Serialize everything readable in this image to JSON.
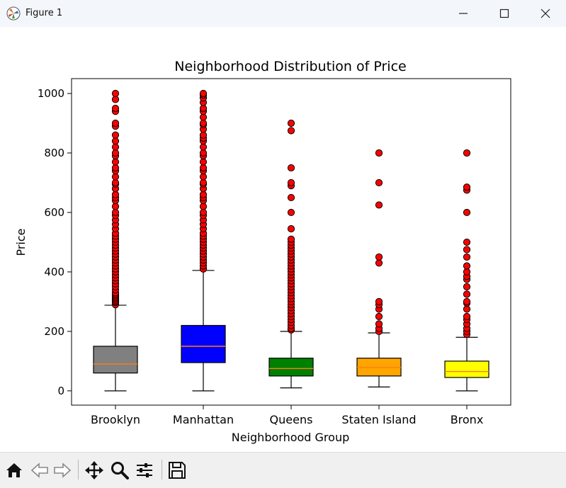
{
  "window": {
    "title": "Figure 1",
    "app_icon": "matplotlib-icon",
    "controls": [
      "minimize-icon",
      "maximize-icon",
      "close-icon"
    ]
  },
  "toolbar": {
    "buttons": [
      "home-icon",
      "back-arrow-icon",
      "forward-arrow-icon",
      "pan-move-icon",
      "zoom-magnifier-icon",
      "configure-subplots-icon",
      "save-floppy-icon"
    ]
  },
  "chart_data": {
    "type": "box",
    "title": "Neighborhood Distribution of Price",
    "xlabel": "Neighborhood Group",
    "ylabel": "Price",
    "ylim": [
      -48,
      1050
    ],
    "yticks": [
      0,
      200,
      400,
      600,
      800,
      1000
    ],
    "ytick_labels": [
      "0",
      "200",
      "400",
      "600",
      "800",
      "1000"
    ],
    "grid": false,
    "categories": [
      "Brooklyn",
      "Manhattan",
      "Queens",
      "Staten Island",
      "Bronx"
    ],
    "median_color": "#ff7f0e",
    "flier_color": "#ff0000",
    "boxes": [
      {
        "label": "Brooklyn",
        "color": "#808080",
        "whisker_low": 0,
        "q1": 60,
        "median": 90,
        "q3": 150,
        "whisker_high": 288,
        "fliers": [
          290,
          298,
          300,
          305,
          310,
          315,
          320,
          325,
          330,
          340,
          350,
          360,
          370,
          380,
          390,
          400,
          410,
          420,
          430,
          440,
          450,
          460,
          470,
          480,
          490,
          500,
          510,
          520,
          530,
          545,
          560,
          575,
          590,
          600,
          620,
          640,
          650,
          660,
          680,
          695,
          700,
          720,
          740,
          750,
          770,
          790,
          800,
          820,
          840,
          860,
          890,
          900,
          940,
          950,
          980,
          1000
        ]
      },
      {
        "label": "Manhattan",
        "color": "#0000ff",
        "whisker_low": 0,
        "q1": 95,
        "median": 150,
        "q3": 220,
        "whisker_high": 405,
        "fliers": [
          410,
          420,
          430,
          440,
          450,
          460,
          470,
          480,
          490,
          500,
          510,
          520,
          530,
          545,
          560,
          575,
          590,
          600,
          620,
          640,
          650,
          660,
          680,
          695,
          700,
          720,
          740,
          750,
          770,
          790,
          800,
          820,
          840,
          850,
          860,
          880,
          895,
          900,
          920,
          940,
          950,
          970,
          985,
          995,
          1000
        ]
      },
      {
        "label": "Queens",
        "color": "#008000",
        "whisker_low": 10,
        "q1": 50,
        "median": 75,
        "q3": 110,
        "whisker_high": 200,
        "fliers": [
          205,
          210,
          220,
          230,
          240,
          250,
          260,
          270,
          280,
          290,
          300,
          310,
          320,
          330,
          340,
          350,
          360,
          370,
          380,
          390,
          400,
          410,
          420,
          430,
          440,
          450,
          460,
          470,
          480,
          490,
          500,
          510,
          545,
          600,
          650,
          690,
          700,
          750,
          875,
          900
        ]
      },
      {
        "label": "Staten Island",
        "color": "#ffa500",
        "whisker_low": 13,
        "q1": 50,
        "median": 79,
        "q3": 110,
        "whisker_high": 195,
        "fliers": [
          200,
          210,
          225,
          250,
          275,
          290,
          300,
          430,
          450,
          625,
          700,
          800
        ]
      },
      {
        "label": "Bronx",
        "color": "#ffff00",
        "whisker_low": 0,
        "q1": 45,
        "median": 65,
        "q3": 100,
        "whisker_high": 180,
        "fliers": [
          190,
          200,
          210,
          225,
          240,
          250,
          275,
          295,
          300,
          325,
          350,
          375,
          385,
          400,
          420,
          450,
          475,
          500,
          600,
          675,
          685,
          800
        ]
      }
    ]
  }
}
